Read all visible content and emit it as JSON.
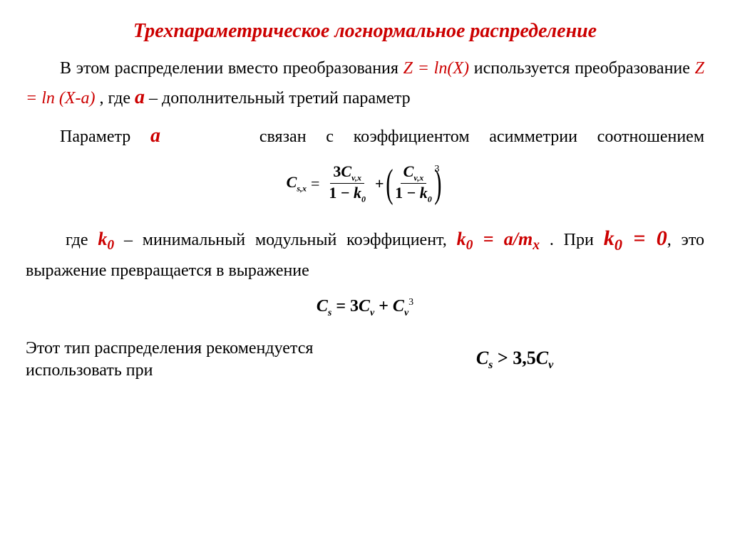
{
  "title": {
    "text": "Трехпараметрическое логнормальное распределение",
    "color": "#cc0000",
    "fontsize": 28
  },
  "body_fontsize": 24,
  "text_color": "#000000",
  "accent_color": "#cc0000",
  "para1": {
    "lead": "В этом распределении вместо преобразования ",
    "z_eq": "Z = ln(X)",
    "mid": " используется преобразование ",
    "z_eq2": "Z = ln (X-a)",
    "after": ", где ",
    "a": "а",
    "tail": " – дополнительный третий параметр"
  },
  "para2": {
    "lead": "Параметр ",
    "a": "а",
    "tail": " связан с коэффициентом асимметрии соотношением"
  },
  "equation1": {
    "lhs": "C",
    "lhs_sub": "s,x",
    "eq": " = ",
    "term1_num_coeff": "3",
    "term1_num_var": "C",
    "term1_num_sub": "v,x",
    "term1_den_lead": "1 − ",
    "term1_den_var": "k",
    "term1_den_sub": "0",
    "plus": " + ",
    "term2_num_var": "C",
    "term2_num_sub": "v,x",
    "term2_den_lead": "1 − ",
    "term2_den_var": "k",
    "term2_den_sub": "0",
    "power": "3",
    "fontsize": 22
  },
  "para3": {
    "lead": "где ",
    "k0": "k",
    "k0_sub": "0",
    "mid": " – минимальный модульный коэффициент, ",
    "k0_2": "k",
    "k0_2_sub": "0",
    "eq": " = a/m",
    "eq_sub": "x",
    "after_eq": ". При ",
    "k0_3": "k",
    "k0_3_sub": "0",
    "eq0": " = 0",
    "tail": ", это выражение превращается в выражение"
  },
  "equation2": {
    "lhs": "C",
    "lhs_sub": "s",
    "eq": " = 3",
    "cv1": "C",
    "cv1_sub": "v",
    "plus": " + ",
    "cv2": "C",
    "cv2_sub": "v",
    "power": "3",
    "fontsize": 24
  },
  "bottom": {
    "text": "Этот тип распределения рекомендуется использовать при",
    "eq_lhs": "C",
    "eq_lhs_sub": "s",
    "eq_op": " > 3,5",
    "eq_rhs": "C",
    "eq_rhs_sub": "v",
    "fontsize": 26
  }
}
